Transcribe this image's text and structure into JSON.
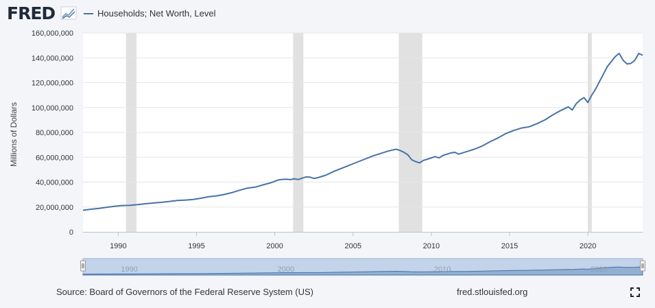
{
  "header": {
    "logo_text": "FRED",
    "legend_label": "Households; Net Worth, Level",
    "line_color": "#4572a7"
  },
  "chart_data": {
    "type": "line",
    "title": "Households; Net Worth, Level",
    "xlabel": "",
    "ylabel": "Millions of Dollars",
    "xlim": [
      1987.75,
      2023.5
    ],
    "ylim": [
      0,
      160000000
    ],
    "yticks": [
      0,
      20000000,
      40000000,
      60000000,
      80000000,
      100000000,
      120000000,
      140000000,
      160000000
    ],
    "ytick_labels": [
      "0",
      "20,000,000",
      "40,000,000",
      "60,000,000",
      "80,000,000",
      "100,000,000",
      "120,000,000",
      "140,000,000",
      "160,000,000"
    ],
    "xticks": [
      1990,
      1995,
      2000,
      2005,
      2010,
      2015,
      2020
    ],
    "xtick_labels": [
      "1990",
      "1995",
      "2000",
      "2005",
      "2010",
      "2015",
      "2020"
    ],
    "recessions": [
      [
        1990.5,
        1991.17
      ],
      [
        2001.17,
        2001.83
      ],
      [
        2007.92,
        2009.42
      ],
      [
        2020.0,
        2020.25
      ]
    ],
    "series": [
      {
        "name": "Households; Net Worth, Level",
        "color": "#4572a7",
        "points": [
          [
            1987.75,
            17400000
          ],
          [
            1988.25,
            18200000
          ],
          [
            1988.75,
            18800000
          ],
          [
            1989.25,
            19700000
          ],
          [
            1989.75,
            20600000
          ],
          [
            1990.25,
            21200000
          ],
          [
            1990.75,
            21300000
          ],
          [
            1991.25,
            21900000
          ],
          [
            1991.75,
            22600000
          ],
          [
            1992.25,
            23200000
          ],
          [
            1992.75,
            23700000
          ],
          [
            1993.25,
            24400000
          ],
          [
            1993.75,
            25200000
          ],
          [
            1994.25,
            25500000
          ],
          [
            1994.75,
            26000000
          ],
          [
            1995.25,
            27000000
          ],
          [
            1995.75,
            28200000
          ],
          [
            1996.25,
            28900000
          ],
          [
            1996.75,
            30000000
          ],
          [
            1997.25,
            31500000
          ],
          [
            1997.75,
            33500000
          ],
          [
            1998.25,
            35200000
          ],
          [
            1998.75,
            36000000
          ],
          [
            1999.25,
            37800000
          ],
          [
            1999.75,
            39500000
          ],
          [
            2000.25,
            41800000
          ],
          [
            2000.5,
            42200000
          ],
          [
            2000.75,
            42300000
          ],
          [
            2001.0,
            42000000
          ],
          [
            2001.25,
            42700000
          ],
          [
            2001.5,
            42100000
          ],
          [
            2001.75,
            43200000
          ],
          [
            2002.0,
            44200000
          ],
          [
            2002.25,
            44000000
          ],
          [
            2002.5,
            43000000
          ],
          [
            2002.75,
            43600000
          ],
          [
            2003.25,
            45500000
          ],
          [
            2003.75,
            48500000
          ],
          [
            2004.25,
            51000000
          ],
          [
            2004.75,
            53500000
          ],
          [
            2005.25,
            56000000
          ],
          [
            2005.75,
            58500000
          ],
          [
            2006.25,
            61000000
          ],
          [
            2006.75,
            63000000
          ],
          [
            2007.25,
            65000000
          ],
          [
            2007.75,
            66500000
          ],
          [
            2008.0,
            65500000
          ],
          [
            2008.25,
            64000000
          ],
          [
            2008.5,
            62000000
          ],
          [
            2008.75,
            58000000
          ],
          [
            2009.0,
            56500000
          ],
          [
            2009.25,
            55500000
          ],
          [
            2009.5,
            57500000
          ],
          [
            2009.75,
            58500000
          ],
          [
            2010.25,
            60500000
          ],
          [
            2010.5,
            59500000
          ],
          [
            2010.75,
            61500000
          ],
          [
            2011.25,
            63500000
          ],
          [
            2011.5,
            64000000
          ],
          [
            2011.75,
            62500000
          ],
          [
            2012.25,
            64500000
          ],
          [
            2012.75,
            66500000
          ],
          [
            2013.25,
            69000000
          ],
          [
            2013.75,
            72500000
          ],
          [
            2014.25,
            75500000
          ],
          [
            2014.75,
            79000000
          ],
          [
            2015.25,
            81500000
          ],
          [
            2015.75,
            83500000
          ],
          [
            2016.25,
            84500000
          ],
          [
            2016.75,
            87000000
          ],
          [
            2017.25,
            90000000
          ],
          [
            2017.75,
            94000000
          ],
          [
            2018.25,
            97500000
          ],
          [
            2018.75,
            100500000
          ],
          [
            2019.0,
            98000000
          ],
          [
            2019.25,
            103000000
          ],
          [
            2019.5,
            106000000
          ],
          [
            2019.75,
            108000000
          ],
          [
            2020.0,
            104000000
          ],
          [
            2020.25,
            110000000
          ],
          [
            2020.5,
            115000000
          ],
          [
            2020.75,
            121000000
          ],
          [
            2021.0,
            127000000
          ],
          [
            2021.25,
            133000000
          ],
          [
            2021.5,
            137000000
          ],
          [
            2021.75,
            141000000
          ],
          [
            2022.0,
            143500000
          ],
          [
            2022.25,
            138000000
          ],
          [
            2022.5,
            135000000
          ],
          [
            2022.75,
            135500000
          ],
          [
            2023.0,
            138000000
          ],
          [
            2023.25,
            143500000
          ],
          [
            2023.5,
            142000000
          ]
        ]
      }
    ],
    "navigator": {
      "tick_labels": [
        "1990",
        "2000",
        "2010",
        "2020"
      ],
      "tick_values": [
        1990,
        2000,
        2010,
        2020
      ]
    }
  },
  "footer": {
    "source": "Source: Board of Governors of the Federal Reserve System (US)",
    "site": "fred.stlouisfed.org"
  },
  "icons": {
    "logo": "fred-chart-icon",
    "fullscreen": "fullscreen-icon"
  }
}
